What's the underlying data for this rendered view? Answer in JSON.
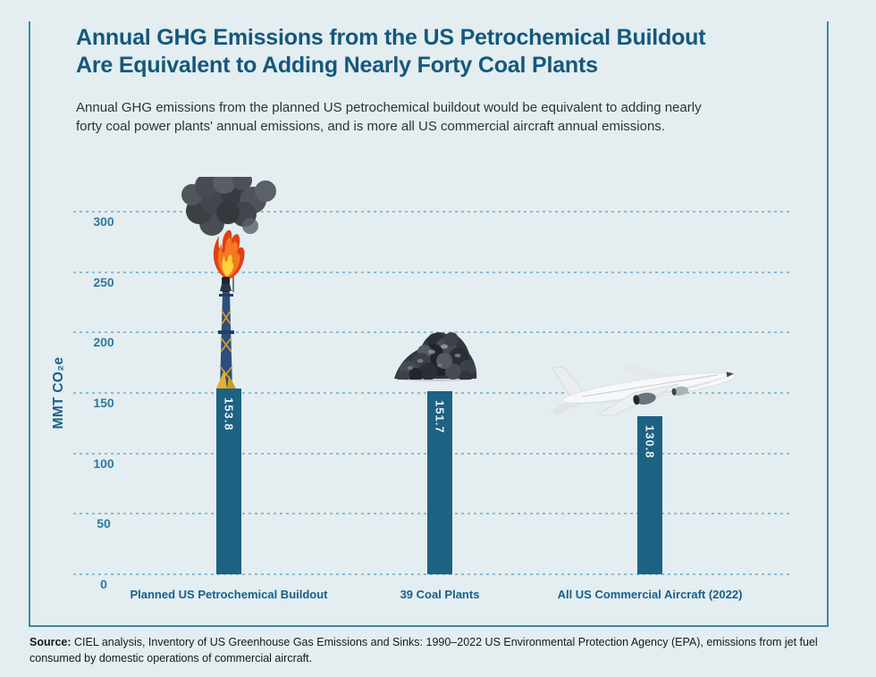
{
  "header": {
    "title_line1": "Annual GHG Emissions from the US Petrochemical Buildout",
    "title_line2": "Are Equivalent to Adding Nearly Forty Coal Plants",
    "subtitle_line1": "Annual GHG emissions from the planned US petrochemical buildout would be equivalent to adding nearly",
    "subtitle_line2": "forty coal power plants' annual emissions, and is more all US commercial aircraft annual emissions."
  },
  "chart_data": {
    "type": "bar",
    "title": "",
    "xlabel": "",
    "ylabel": "MMT CO₂e",
    "ylim": [
      0,
      300
    ],
    "yticks": [
      0,
      50,
      100,
      150,
      200,
      250,
      300
    ],
    "grid": "horizontal-dashed",
    "legend": "none",
    "categories": [
      "Planned US Petrochemical Buildout",
      "39 Coal Plants",
      "All US Commercial Aircraft (2022)"
    ],
    "values": [
      153.8,
      151.7,
      130.8
    ],
    "value_labels": [
      "153.8",
      "151.7",
      "130.8"
    ],
    "bar_color": "#1d6183",
    "icons": [
      "flare-stack-image",
      "coal-pile-image",
      "airplane-image"
    ]
  },
  "footer": {
    "source_label": "Source:",
    "source_text": "CIEL analysis, Inventory of US Greenhouse Gas Emissions and Sinks: 1990–2022 US Environmental Protection Agency (EPA), emissions from jet fuel consumed by domestic operations of commercial aircraft."
  },
  "colors": {
    "background": "#e4edf0",
    "frame_border": "#3e86a9",
    "title": "#14587c",
    "bar": "#1d6183",
    "gridline": "#8cbcd2",
    "tick_label": "#2e7aa0",
    "category_label": "#16618b"
  }
}
